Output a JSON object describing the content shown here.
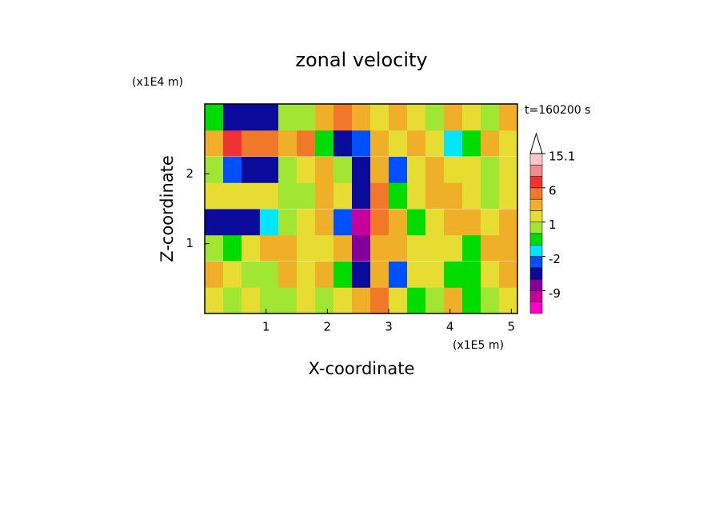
{
  "chart_data": {
    "type": "contour",
    "title": "zonal velocity",
    "y_unit": "(x1E4 m)",
    "x_unit": "(x1E5 m)",
    "time_label": "t=160200 s",
    "xlabel": "X-coordinate",
    "ylabel": "Z-coordinate",
    "xlim": [
      0,
      5.1
    ],
    "ylim": [
      0,
      3
    ],
    "xticks": [
      1,
      2,
      3,
      4,
      5
    ],
    "yticks": [
      1,
      2
    ],
    "x": [
      0.15,
      0.45,
      0.75,
      1.05,
      1.35,
      1.65,
      1.95,
      2.25,
      2.55,
      2.85,
      3.15,
      3.45,
      3.75,
      4.05,
      4.35,
      4.65,
      4.95
    ],
    "y": [
      0.19,
      0.56,
      0.94,
      1.31,
      1.69,
      2.06,
      2.44,
      2.81
    ],
    "z": [
      [
        1.5,
        0.5,
        1.5,
        0.5,
        0,
        1,
        0.5,
        1.5,
        3,
        5,
        1,
        -1,
        0.5,
        2,
        -0.5,
        0.5,
        1
      ],
      [
        3,
        1.5,
        0.5,
        0.5,
        2,
        1.5,
        3,
        -1,
        -6,
        3,
        -3,
        1,
        1.5,
        -1,
        -0.5,
        1,
        3
      ],
      [
        0,
        -1,
        1.5,
        3,
        3,
        1.5,
        1,
        3,
        -8,
        3,
        2,
        1,
        1.5,
        1,
        -0.5,
        3,
        3
      ],
      [
        -5,
        -5,
        -4,
        -1.5,
        0,
        1,
        2,
        -3,
        -10,
        5,
        3,
        -1,
        1,
        3,
        3,
        1,
        3
      ],
      [
        1.5,
        1.5,
        1,
        1.5,
        0.5,
        0.5,
        3,
        1,
        -5,
        4,
        -1,
        1,
        2,
        2,
        1,
        0.5,
        1
      ],
      [
        0,
        -3,
        -6,
        -4,
        0,
        1,
        2,
        0,
        -6,
        3,
        -3,
        1,
        3,
        1.5,
        1,
        0.5,
        1
      ],
      [
        3,
        6,
        4,
        4,
        3,
        4,
        -1,
        -5,
        -3,
        2,
        1,
        2,
        1.5,
        -2,
        -1,
        3,
        1.5
      ],
      [
        -1,
        -5,
        -4,
        -5,
        0,
        0,
        3,
        4,
        3,
        1.5,
        3,
        1.5,
        0.5,
        3,
        1,
        0.5,
        3
      ]
    ],
    "colorbar": {
      "levels": [
        -15,
        -12,
        -9,
        -6,
        -3,
        -2,
        -1,
        0,
        1,
        2,
        4,
        6,
        9,
        12,
        15.1
      ],
      "colors": [
        "#ff00c8",
        "#c8009b",
        "#82009b",
        "#0a0a9b",
        "#0050ff",
        "#00e6ff",
        "#00dc00",
        "#a0e632",
        "#e6dc32",
        "#f0af28",
        "#f07828",
        "#f03232",
        "#f08c8c",
        "#ffc8c8"
      ],
      "ticks": [
        15.1,
        6,
        1,
        -2,
        -9
      ]
    }
  }
}
